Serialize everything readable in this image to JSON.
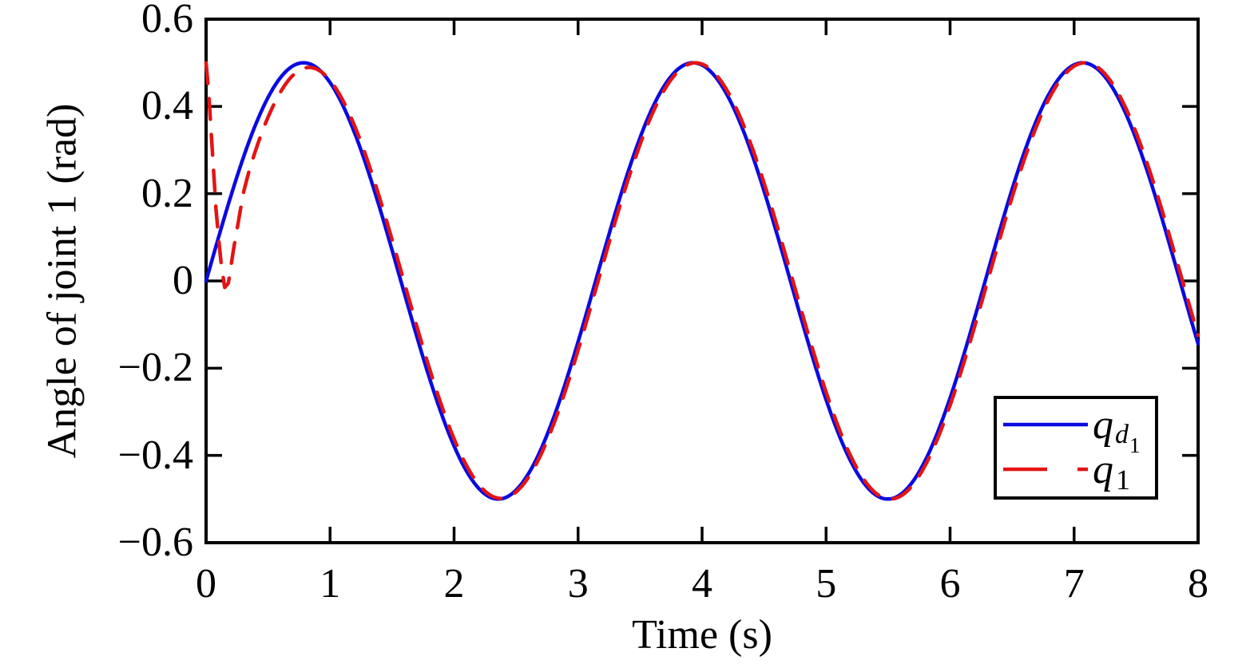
{
  "figure": {
    "background_color": "#ffffff",
    "axis_color": "#000000"
  },
  "chart_data": {
    "type": "line",
    "title": "",
    "xlabel": "Time (s)",
    "ylabel": "Angle of joint 1 (rad)",
    "xlim": [
      0,
      8
    ],
    "ylim": [
      -0.6,
      0.6
    ],
    "xticks": [
      0,
      1,
      2,
      3,
      4,
      5,
      6,
      7,
      8
    ],
    "xtick_labels": [
      "0",
      "1",
      "2",
      "3",
      "4",
      "5",
      "6",
      "7",
      "8"
    ],
    "yticks": [
      0.6,
      0.4,
      0.2,
      0,
      -0.2,
      -0.4,
      -0.6
    ],
    "ytick_labels": [
      "0.6",
      "0.4",
      "0.2",
      "0",
      "−0.2",
      "−0.4",
      "−0.6"
    ],
    "grid": false,
    "box": true,
    "legend_position": "lower-right-inside",
    "series": [
      {
        "name": "qd1_desired",
        "label_parts": {
          "base": "q",
          "sub": "d",
          "subsub": "1"
        },
        "color": "#0a0ae0",
        "style": "solid",
        "line_width": 4.5,
        "model": {
          "type": "sine",
          "amplitude": 0.5,
          "omega": 2,
          "phase": 0
        },
        "sample_t": [
          0,
          0.25,
          0.5,
          0.75,
          1,
          1.25,
          1.5,
          1.75,
          2,
          2.25,
          2.5,
          2.75,
          3,
          3.25,
          3.5,
          3.75,
          4,
          4.25,
          4.5,
          4.75,
          5,
          5.25,
          5.5,
          5.75,
          6,
          6.25,
          6.5,
          6.75,
          7,
          7.25,
          7.5,
          7.75,
          8
        ],
        "sample_y": [
          0,
          0.24,
          0.421,
          0.499,
          0.455,
          0.299,
          0.071,
          -0.175,
          -0.378,
          -0.489,
          -0.479,
          -0.353,
          -0.14,
          0.108,
          0.328,
          0.469,
          0.495,
          0.399,
          0.206,
          -0.038,
          -0.272,
          -0.44,
          -0.5,
          -0.438,
          -0.268,
          -0.033,
          0.21,
          0.402,
          0.495,
          0.467,
          0.325,
          0.116,
          -0.144
        ]
      },
      {
        "name": "q1_actual",
        "label_parts": {
          "base": "q",
          "sub": "1"
        },
        "color": "#e41414",
        "style": "dashed",
        "line_width": 4.5,
        "model": {
          "type": "tracking-sine",
          "omega": 2,
          "amp": {
            "base": 0.5,
            "delta": 0.03,
            "tau": 0.8
          },
          "lag": {
            "base": 0.02,
            "delta": 0.1,
            "tau": 0.5
          },
          "anchors": [
            [
              0,
              0.5
            ],
            [
              0.02,
              0.435
            ],
            [
              0.05,
              0.3
            ],
            [
              0.08,
              0.165
            ],
            [
              0.1,
              0.1
            ],
            [
              0.12,
              0.045
            ],
            [
              0.15,
              -0.015
            ],
            [
              0.18,
              -0.005
            ],
            [
              0.22,
              0.07
            ],
            [
              0.26,
              0.135
            ],
            [
              0.3,
              0.2
            ],
            [
              0.35,
              0.255
            ],
            [
              0.4,
              0.3
            ],
            [
              0.47,
              0.36
            ],
            [
              0.55,
              0.42
            ]
          ],
          "blend": [
            0.25,
            0.55
          ]
        },
        "sample_t": [
          0,
          0.25,
          0.5,
          0.75,
          1,
          1.25,
          1.5,
          1.75,
          2,
          2.25,
          2.5,
          2.75,
          3,
          3.25,
          3.5,
          3.75,
          4,
          4.25,
          4.5,
          4.75,
          5,
          5.25,
          5.5,
          5.75,
          6,
          6.25,
          6.5,
          6.75,
          7,
          7.25,
          7.5,
          7.75,
          8
        ],
        "sample_y": [
          0.5,
          0.119,
          0.38,
          0.482,
          0.46,
          0.317,
          0.094,
          -0.153,
          -0.363,
          -0.482,
          -0.483,
          -0.366,
          -0.159,
          0.088,
          0.313,
          0.461,
          0.497,
          0.41,
          0.224,
          -0.018,
          -0.254,
          -0.429,
          -0.5,
          -0.448,
          -0.286,
          -0.053,
          0.192,
          0.39,
          0.492,
          0.474,
          0.341,
          0.123,
          -0.124
        ]
      }
    ]
  }
}
